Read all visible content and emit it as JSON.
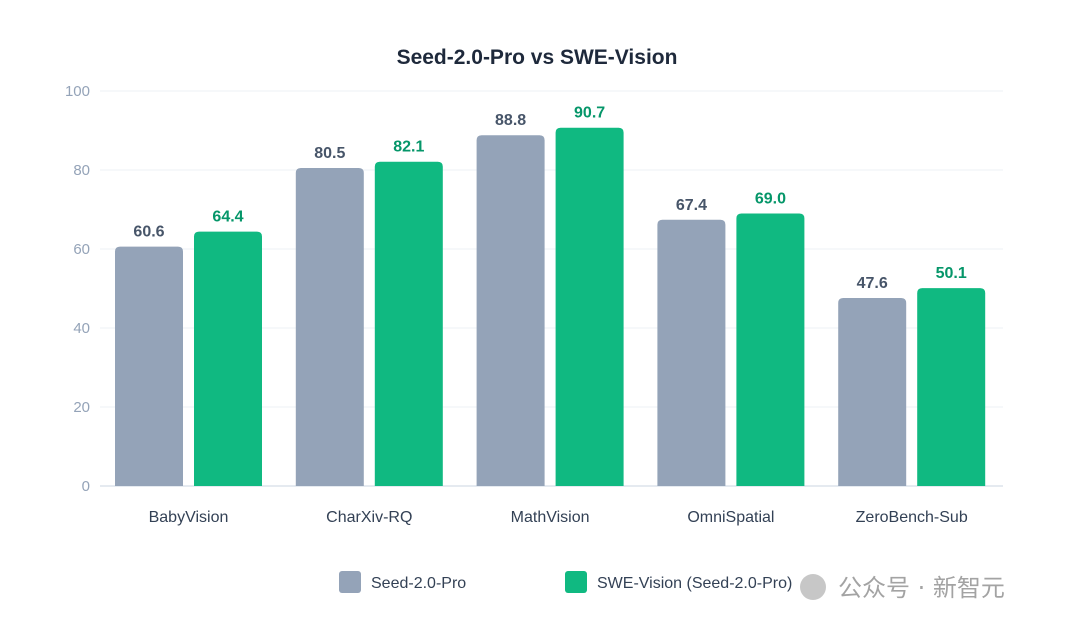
{
  "chart_data": {
    "type": "bar",
    "title": "Seed-2.0-Pro vs SWE-Vision",
    "categories": [
      "BabyVision",
      "CharXiv-RQ",
      "MathVision",
      "OmniSpatial",
      "ZeroBench-Sub"
    ],
    "series": [
      {
        "name": "Seed-2.0-Pro",
        "values": [
          60.6,
          80.5,
          88.8,
          67.4,
          47.6
        ],
        "labels": [
          "60.6",
          "80.5",
          "88.8",
          "67.4",
          "47.6"
        ],
        "color": "#94a3b8",
        "label_color": "#475569"
      },
      {
        "name": "SWE-Vision (Seed-2.0-Pro)",
        "values": [
          64.4,
          82.1,
          90.7,
          69.0,
          50.1
        ],
        "labels": [
          "64.4",
          "82.1",
          "90.7",
          "69.0",
          "50.1"
        ],
        "color": "#10b981",
        "label_color": "#059669"
      }
    ],
    "ylim": [
      0,
      100
    ],
    "yticks": [
      "0",
      "20",
      "40",
      "60",
      "80",
      "100"
    ],
    "xlabel": "",
    "ylabel": "",
    "grid": true,
    "legend": "bottom"
  },
  "watermark": "公众号 · 新智元"
}
